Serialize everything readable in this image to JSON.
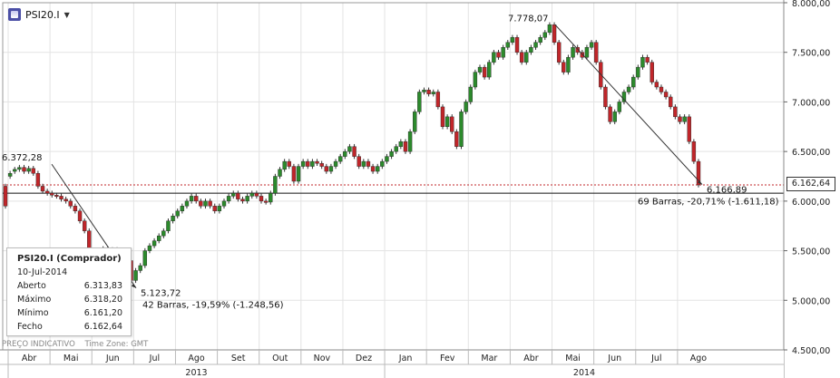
{
  "header": {
    "symbol": "PSI20.I",
    "dropdown_icon": "caret-down-icon",
    "logo_icon": "cfd-logo-icon"
  },
  "info_box": {
    "title": "PSI20.I (Comprador)",
    "date": "10-Jul-2014",
    "rows": [
      {
        "label": "Aberto",
        "value": "6.313,83"
      },
      {
        "label": "Máximo",
        "value": "6.318,20"
      },
      {
        "label": "Mínimo",
        "value": "6.161,20"
      },
      {
        "label": "Fecho",
        "value": "6.162,64"
      }
    ]
  },
  "footer": {
    "indicative": "PREÇO INDICATIVO",
    "timezone": "Time Zone: GMT"
  },
  "current_price": "6.162,64",
  "colors": {
    "up": "#2c8a2c",
    "down": "#c0262a",
    "wick": "#333333",
    "grid": "#e3e3e3",
    "current_line": "#c0262a"
  },
  "chart_data": {
    "type": "candlestick",
    "ylim": [
      4500,
      8000
    ],
    "yticks": [
      {
        "v": 4500,
        "label": "4.500,00"
      },
      {
        "v": 5000,
        "label": "5.000,00"
      },
      {
        "v": 5500,
        "label": "5.500,00"
      },
      {
        "v": 6000,
        "label": "6.000,00"
      },
      {
        "v": 6500,
        "label": "6.500,00"
      },
      {
        "v": 7000,
        "label": "7.000,00"
      },
      {
        "v": 7500,
        "label": "7.500,00"
      },
      {
        "v": 8000,
        "label": "8.000,00"
      }
    ],
    "months": [
      "Abr",
      "Mai",
      "Jun",
      "Jul",
      "Ago",
      "Set",
      "Out",
      "Nov",
      "Dez",
      "Jan",
      "Fev",
      "Mar",
      "Abr",
      "Mai",
      "Jun",
      "Jul",
      "Ago"
    ],
    "years": [
      "2013",
      "2014"
    ],
    "year_start_month_index": [
      0,
      9
    ],
    "horizontal_line": 6080,
    "series": [
      [
        6150,
        5950
      ],
      [
        6250,
        6280
      ],
      [
        6300,
        6320
      ],
      [
        6320,
        6340
      ],
      [
        6340,
        6300
      ],
      [
        6300,
        6330
      ],
      [
        6330,
        6280
      ],
      [
        6280,
        6150
      ],
      [
        6150,
        6100
      ],
      [
        6100,
        6080
      ],
      [
        6080,
        6060
      ],
      [
        6060,
        6050
      ],
      [
        6050,
        6020
      ],
      [
        6020,
        6000
      ],
      [
        6000,
        5950
      ],
      [
        5950,
        5900
      ],
      [
        5900,
        5800
      ],
      [
        5800,
        5700
      ],
      [
        5700,
        5500
      ],
      [
        5500,
        5500
      ],
      [
        5500,
        5460
      ],
      [
        5460,
        5520
      ],
      [
        5520,
        5480
      ],
      [
        5480,
        5510
      ],
      [
        5510,
        5470
      ],
      [
        5470,
        5450
      ],
      [
        5450,
        5400
      ],
      [
        5400,
        5200
      ],
      [
        5200,
        5300
      ],
      [
        5300,
        5350
      ],
      [
        5350,
        5500
      ],
      [
        5500,
        5550
      ],
      [
        5550,
        5600
      ],
      [
        5600,
        5650
      ],
      [
        5650,
        5700
      ],
      [
        5700,
        5800
      ],
      [
        5800,
        5850
      ],
      [
        5850,
        5900
      ],
      [
        5900,
        5950
      ],
      [
        5950,
        6000
      ],
      [
        6000,
        6050
      ],
      [
        6050,
        6000
      ],
      [
        6000,
        5950
      ],
      [
        5950,
        6000
      ],
      [
        6000,
        5950
      ],
      [
        5950,
        5900
      ],
      [
        5900,
        5950
      ],
      [
        5950,
        6000
      ],
      [
        6000,
        6050
      ],
      [
        6050,
        6080
      ],
      [
        6080,
        6020
      ],
      [
        6020,
        6000
      ],
      [
        6000,
        6050
      ],
      [
        6050,
        6080
      ],
      [
        6080,
        6050
      ],
      [
        6050,
        6000
      ],
      [
        6000,
        5990
      ],
      [
        5990,
        6080
      ],
      [
        6080,
        6250
      ],
      [
        6250,
        6320
      ],
      [
        6320,
        6400
      ],
      [
        6400,
        6350
      ],
      [
        6350,
        6200
      ],
      [
        6200,
        6350
      ],
      [
        6350,
        6400
      ],
      [
        6400,
        6350
      ],
      [
        6350,
        6400
      ],
      [
        6400,
        6380
      ],
      [
        6380,
        6350
      ],
      [
        6350,
        6300
      ],
      [
        6300,
        6350
      ],
      [
        6350,
        6400
      ],
      [
        6400,
        6450
      ],
      [
        6450,
        6500
      ],
      [
        6500,
        6550
      ],
      [
        6550,
        6450
      ],
      [
        6450,
        6350
      ],
      [
        6350,
        6400
      ],
      [
        6400,
        6350
      ],
      [
        6350,
        6300
      ],
      [
        6300,
        6350
      ],
      [
        6350,
        6400
      ],
      [
        6400,
        6450
      ],
      [
        6450,
        6500
      ],
      [
        6500,
        6550
      ],
      [
        6550,
        6600
      ],
      [
        6600,
        6500
      ],
      [
        6500,
        6700
      ],
      [
        6700,
        6900
      ],
      [
        6900,
        7100
      ],
      [
        7100,
        7120
      ],
      [
        7120,
        7080
      ],
      [
        7080,
        7100
      ],
      [
        7100,
        6950
      ],
      [
        6950,
        6750
      ],
      [
        6750,
        6850
      ],
      [
        6850,
        6700
      ],
      [
        6700,
        6550
      ],
      [
        6550,
        6900
      ],
      [
        6900,
        7000
      ],
      [
        7000,
        7150
      ],
      [
        7150,
        7300
      ],
      [
        7300,
        7350
      ],
      [
        7350,
        7250
      ],
      [
        7250,
        7400
      ],
      [
        7400,
        7500
      ],
      [
        7500,
        7450
      ],
      [
        7450,
        7550
      ],
      [
        7550,
        7600
      ],
      [
        7600,
        7650
      ],
      [
        7650,
        7500
      ],
      [
        7500,
        7400
      ],
      [
        7400,
        7500
      ],
      [
        7500,
        7550
      ],
      [
        7550,
        7600
      ],
      [
        7600,
        7650
      ],
      [
        7650,
        7700
      ],
      [
        7700,
        7778
      ],
      [
        7778,
        7600
      ],
      [
        7600,
        7400
      ],
      [
        7400,
        7300
      ],
      [
        7300,
        7450
      ],
      [
        7450,
        7550
      ],
      [
        7550,
        7500
      ],
      [
        7500,
        7450
      ],
      [
        7450,
        7550
      ],
      [
        7550,
        7600
      ],
      [
        7600,
        7400
      ],
      [
        7400,
        7150
      ],
      [
        7150,
        6950
      ],
      [
        6950,
        6800
      ],
      [
        6800,
        6900
      ],
      [
        6900,
        7000
      ],
      [
        7000,
        7100
      ],
      [
        7100,
        7150
      ],
      [
        7150,
        7250
      ],
      [
        7250,
        7350
      ],
      [
        7350,
        7450
      ],
      [
        7450,
        7400
      ],
      [
        7400,
        7200
      ],
      [
        7200,
        7150
      ],
      [
        7150,
        7100
      ],
      [
        7100,
        7050
      ],
      [
        7050,
        6950
      ],
      [
        6950,
        6850
      ],
      [
        6850,
        6800
      ],
      [
        6800,
        6850
      ],
      [
        6850,
        6600
      ],
      [
        6600,
        6400
      ],
      [
        6400,
        6163
      ]
    ],
    "annotations": [
      {
        "type": "trend",
        "from": [
          6372.28,
          "Mai"
        ],
        "to": [
          5123.72,
          "Jul"
        ],
        "high_label": "6.372,28",
        "low_label": "5.123,72",
        "stats": "42 Barras, -19,59% (-1.248,56)"
      },
      {
        "type": "trend",
        "from": [
          7778.07,
          "Mar"
        ],
        "to": [
          6166.89,
          "Jul"
        ],
        "high_label": "7.778,07",
        "low_label": "6.166,89",
        "stats": "69 Barras, -20,71% (-1.611,18)"
      }
    ]
  }
}
